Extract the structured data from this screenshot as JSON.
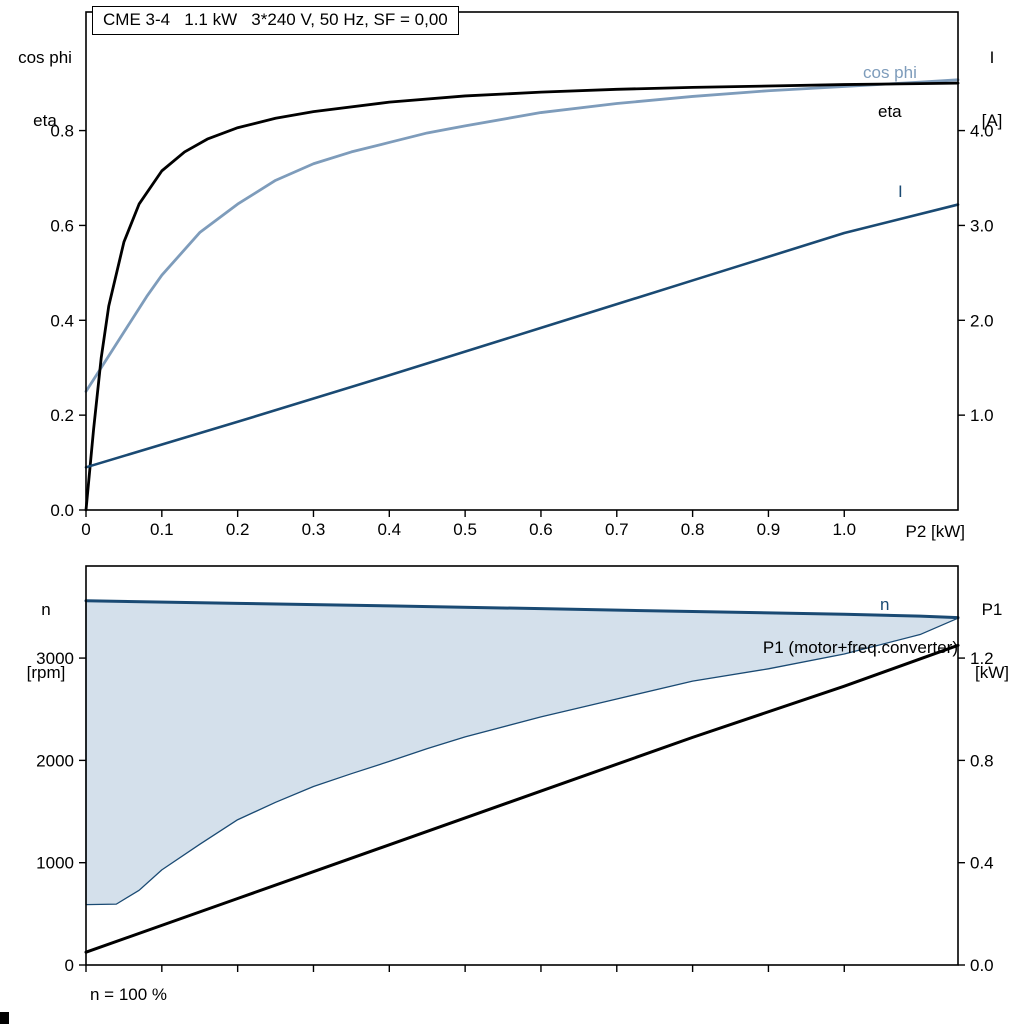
{
  "footer": {
    "note": "n = 100 %"
  },
  "chart_data": [
    {
      "type": "line",
      "title": "CME 3-4   1.1 kW   3*240 V, 50 Hz, SF = 0,00",
      "x": {
        "label": "P2 [kW]",
        "min": 0,
        "max": 1.15,
        "ticks": [
          0,
          0.1,
          0.2,
          0.3,
          0.4,
          0.5,
          0.6,
          0.7,
          0.8,
          0.9,
          1.0
        ],
        "tick_labels": [
          "0",
          "0.1",
          "0.2",
          "0.3",
          "0.4",
          "0.5",
          "0.6",
          "0.7",
          "0.8",
          "0.9",
          "1.0"
        ]
      },
      "y_left": {
        "label_lines": [
          "cos phi",
          "eta"
        ],
        "min": 0,
        "max": 1.05,
        "ticks": [
          0,
          0.2,
          0.4,
          0.6,
          0.8
        ],
        "tick_labels": [
          "0.0",
          "0.2",
          "0.4",
          "0.6",
          "0.8"
        ]
      },
      "y_right": {
        "label_lines": [
          "I",
          "[A]"
        ],
        "min": 0,
        "max": 5.25,
        "ticks": [
          1,
          2,
          3,
          4
        ],
        "tick_labels": [
          "1.0",
          "2.0",
          "3.0",
          "4.0"
        ]
      },
      "grid": false,
      "series": [
        {
          "name": "cos phi",
          "axis": "left",
          "color": "#7e9cbb",
          "width": 2.8,
          "points": [
            [
              0,
              0.25
            ],
            [
              0.02,
              0.3
            ],
            [
              0.05,
              0.375
            ],
            [
              0.08,
              0.45
            ],
            [
              0.1,
              0.495
            ],
            [
              0.15,
              0.585
            ],
            [
              0.2,
              0.645
            ],
            [
              0.25,
              0.695
            ],
            [
              0.3,
              0.73
            ],
            [
              0.35,
              0.755
            ],
            [
              0.4,
              0.775
            ],
            [
              0.45,
              0.795
            ],
            [
              0.5,
              0.81
            ],
            [
              0.6,
              0.838
            ],
            [
              0.7,
              0.857
            ],
            [
              0.8,
              0.872
            ],
            [
              0.9,
              0.884
            ],
            [
              1.0,
              0.893
            ],
            [
              1.1,
              0.902
            ],
            [
              1.15,
              0.907
            ]
          ]
        },
        {
          "name": "eta",
          "axis": "left",
          "color": "#000000",
          "width": 2.8,
          "points": [
            [
              0,
              0
            ],
            [
              0.01,
              0.17
            ],
            [
              0.02,
              0.32
            ],
            [
              0.03,
              0.43
            ],
            [
              0.05,
              0.565
            ],
            [
              0.07,
              0.645
            ],
            [
              0.1,
              0.715
            ],
            [
              0.13,
              0.755
            ],
            [
              0.16,
              0.782
            ],
            [
              0.2,
              0.806
            ],
            [
              0.25,
              0.826
            ],
            [
              0.3,
              0.84
            ],
            [
              0.4,
              0.86
            ],
            [
              0.5,
              0.873
            ],
            [
              0.6,
              0.881
            ],
            [
              0.7,
              0.887
            ],
            [
              0.8,
              0.891
            ],
            [
              0.9,
              0.894
            ],
            [
              1.0,
              0.897
            ],
            [
              1.1,
              0.899
            ],
            [
              1.15,
              0.9
            ]
          ]
        },
        {
          "name": "I",
          "axis": "right",
          "color": "#1a4a73",
          "width": 2.6,
          "points": [
            [
              0,
              0.45
            ],
            [
              0.2,
              0.93
            ],
            [
              0.4,
              1.42
            ],
            [
              0.6,
              1.92
            ],
            [
              0.8,
              2.42
            ],
            [
              1.0,
              2.92
            ],
            [
              1.15,
              3.22
            ]
          ]
        }
      ]
    },
    {
      "type": "line",
      "x": {
        "label": "",
        "min": 0,
        "max": 1.15,
        "ticks": [
          0,
          0.1,
          0.2,
          0.3,
          0.4,
          0.5,
          0.6,
          0.7,
          0.8,
          0.9,
          1.0
        ],
        "tick_labels": []
      },
      "y_left": {
        "label_lines": [
          "n",
          "[rpm]"
        ],
        "min": 0,
        "max": 3900,
        "ticks": [
          0,
          1000,
          2000,
          3000
        ],
        "tick_labels": [
          "0",
          "1000",
          "2000",
          "3000"
        ]
      },
      "y_right": {
        "label_lines": [
          "P1",
          "[kW]"
        ],
        "min": 0,
        "max": 1.56,
        "ticks": [
          0,
          0.4,
          0.8,
          1.2
        ],
        "tick_labels": [
          "0.0",
          "0.4",
          "0.8",
          "1.2"
        ]
      },
      "grid": false,
      "series": [
        {
          "name": "n range",
          "type": "band",
          "axis": "left",
          "color": "#1a4a73",
          "width": 1.3,
          "fill": "#cfdde9",
          "fill_opacity": 0.9,
          "lower": [
            [
              0,
              590
            ],
            [
              0.04,
              595
            ],
            [
              0.07,
              730
            ],
            [
              0.1,
              930
            ],
            [
              0.15,
              1180
            ],
            [
              0.2,
              1420
            ],
            [
              0.25,
              1590
            ],
            [
              0.3,
              1745
            ],
            [
              0.35,
              1870
            ],
            [
              0.4,
              1990
            ],
            [
              0.45,
              2115
            ],
            [
              0.5,
              2230
            ],
            [
              0.6,
              2425
            ],
            [
              0.7,
              2600
            ],
            [
              0.8,
              2775
            ],
            [
              0.9,
              2895
            ],
            [
              1.0,
              3040
            ],
            [
              1.1,
              3230
            ],
            [
              1.15,
              3390
            ]
          ],
          "upper": [
            [
              0,
              3560
            ],
            [
              0.2,
              3535
            ],
            [
              0.4,
              3510
            ],
            [
              0.6,
              3483
            ],
            [
              0.8,
              3455
            ],
            [
              1.0,
              3428
            ],
            [
              1.1,
              3410
            ],
            [
              1.15,
              3395
            ]
          ]
        },
        {
          "name": "P1 (motor+freq.converter)",
          "axis": "right",
          "color": "#000000",
          "width": 3,
          "points": [
            [
              0,
              0.05
            ],
            [
              0.2,
              0.26
            ],
            [
              0.4,
              0.47
            ],
            [
              0.6,
              0.68
            ],
            [
              0.8,
              0.89
            ],
            [
              1.0,
              1.09
            ],
            [
              1.15,
              1.25
            ]
          ]
        },
        {
          "name": "n",
          "axis": "left",
          "color": "#1a4a73",
          "width": 3,
          "points": [
            [
              0,
              3560
            ],
            [
              0.2,
              3535
            ],
            [
              0.4,
              3510
            ],
            [
              0.6,
              3483
            ],
            [
              0.8,
              3455
            ],
            [
              1.0,
              3428
            ],
            [
              1.1,
              3410
            ],
            [
              1.15,
              3395
            ]
          ]
        }
      ]
    }
  ]
}
